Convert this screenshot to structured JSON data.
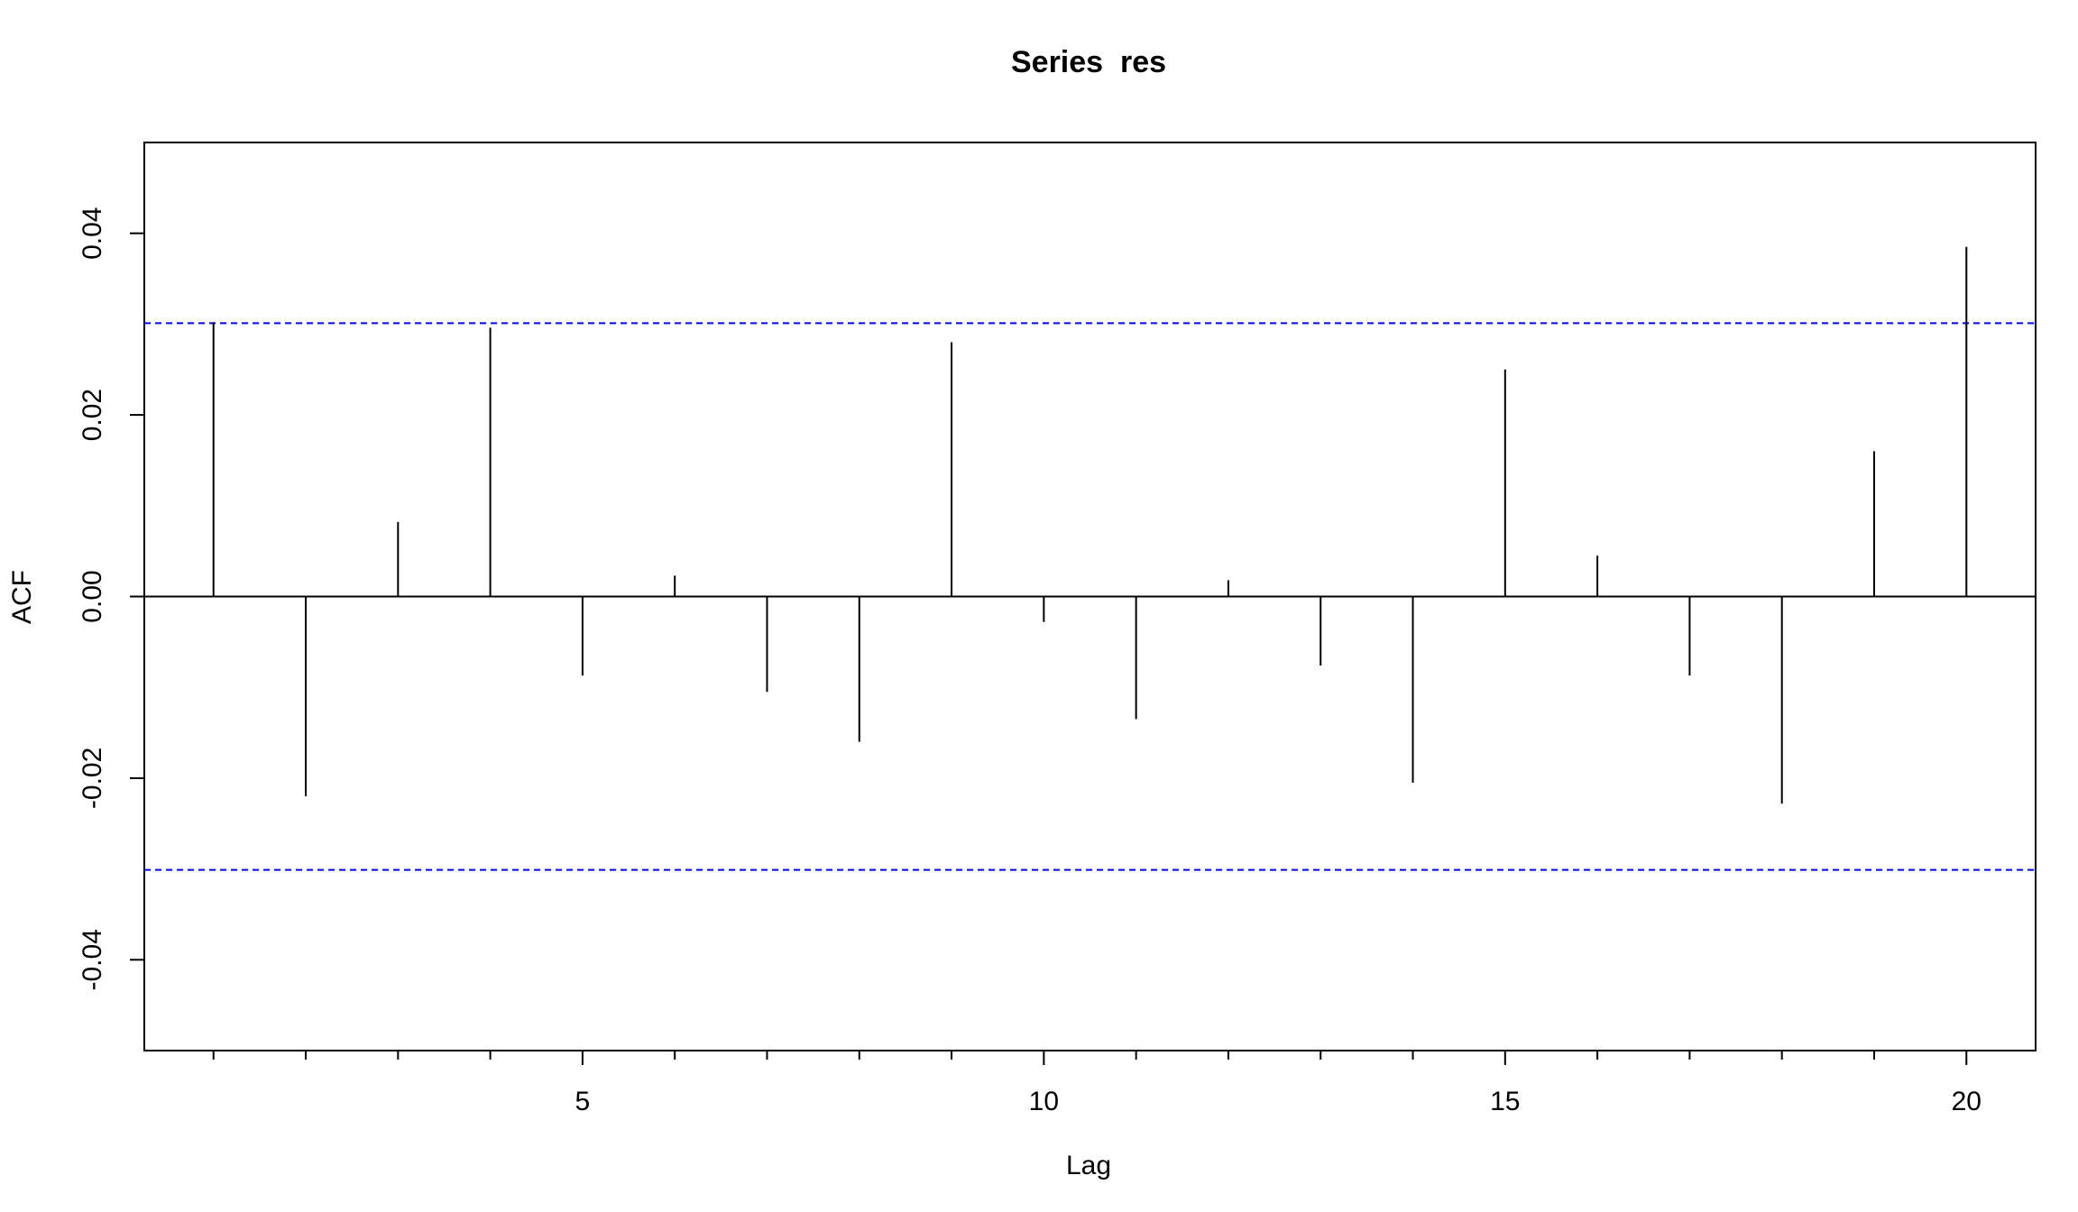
{
  "chart_data": {
    "type": "bar",
    "title": "Series  res",
    "xlabel": "Lag",
    "ylabel": "ACF",
    "xlim": [
      0.25,
      20.75
    ],
    "ylim": [
      -0.05,
      0.05
    ],
    "x_ticks": [
      5,
      10,
      15,
      20
    ],
    "x_tick_labels": [
      "5",
      "10",
      "15",
      "20"
    ],
    "x_minor_ticks": [
      1,
      2,
      3,
      4,
      6,
      7,
      8,
      9,
      11,
      12,
      13,
      14,
      16,
      17,
      18,
      19
    ],
    "y_ticks": [
      -0.04,
      -0.02,
      0.0,
      0.02,
      0.04
    ],
    "y_tick_labels": [
      "-0.04",
      "-0.02",
      "0.00",
      "0.02",
      "0.04"
    ],
    "confidence_bounds": [
      0.0301,
      -0.0301
    ],
    "series": [
      {
        "lag": [
          1,
          2,
          3,
          4,
          5,
          6,
          7,
          8,
          9,
          10,
          11,
          12,
          13,
          14,
          15,
          16,
          17,
          18,
          19,
          20
        ],
        "acf": [
          0.0302,
          -0.022,
          0.0082,
          0.0296,
          -0.0087,
          0.0023,
          -0.0105,
          -0.016,
          0.028,
          -0.0028,
          -0.0135,
          0.0018,
          -0.0076,
          -0.0205,
          0.025,
          0.0045,
          -0.0087,
          -0.0228,
          0.016,
          0.0385
        ]
      }
    ],
    "colors": {
      "spike": "#000000",
      "bounds": "#0000ff",
      "axis": "#000000"
    },
    "grid": false
  }
}
